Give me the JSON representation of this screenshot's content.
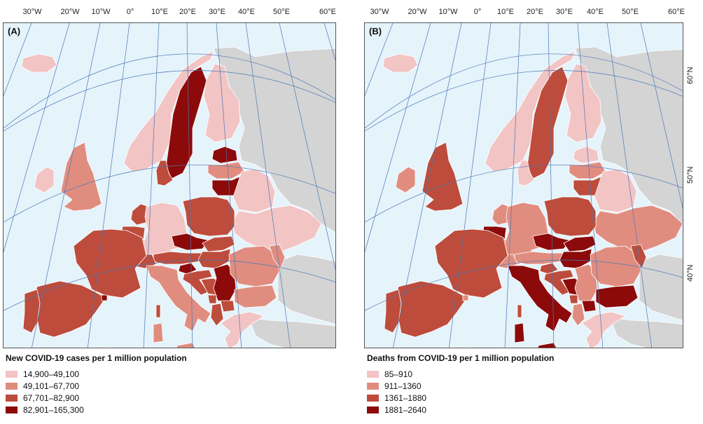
{
  "longitude_labels": [
    "30°W",
    "20°W",
    "10°W",
    "0°",
    "10°E",
    "20°E",
    "30°E",
    "40°E",
    "50°E",
    "60°E"
  ],
  "latitude_labels": [
    "60°N",
    "50°N",
    "40°N"
  ],
  "colors": {
    "sea": "#e5f3fb",
    "non_eu_land": "#d4d4d4",
    "graticule": "#4a78b6",
    "class_1": "#f2c4c4",
    "class_2": "#e08d80",
    "class_3": "#bd4c3c",
    "class_4": "#8c0a0a"
  },
  "panels": [
    {
      "tag": "(A)",
      "legend_title": "New COVID-19 cases per 1 million population",
      "legend": [
        "14,900–49,100",
        "49,101–67,700",
        "67,701–82,900",
        "82,901–165,300"
      ],
      "regions": {
        "iceland": 1,
        "norway": 1,
        "sweden": 4,
        "finland": 1,
        "ireland": 1,
        "uk": 2,
        "denmark": 3,
        "estonia": 4,
        "latvia": 2,
        "lithuania": 4,
        "netherlands": 3,
        "belgium": 3,
        "luxembourg": 3,
        "germany": 1,
        "poland": 3,
        "czechia": 4,
        "slovakia": 3,
        "austria": 3,
        "switzerland": 3,
        "france": 3,
        "portugal": 3,
        "spain": 3,
        "andorra": 4,
        "italy": 2,
        "slovenia": 4,
        "croatia": 3,
        "hungary": 3,
        "romania": 2,
        "bulgaria": 2,
        "serbia": 4,
        "bosnia": 3,
        "montenegro": 3,
        "albania": 3,
        "north_macedonia": 3,
        "greece": 1,
        "belarus": 1,
        "ukraine": 1,
        "moldova": 2,
        "cyprus": 2,
        "malta": 3,
        "sardinia": 2,
        "sicily": 2,
        "corsica": 3
      }
    },
    {
      "tag": "(B)",
      "legend_title": "Deaths from COVID-19 per 1 million population",
      "legend": [
        "85–910",
        "911–1360",
        "1361–1880",
        "1881–2640"
      ],
      "regions": {
        "iceland": 1,
        "norway": 1,
        "sweden": 3,
        "finland": 1,
        "ireland": 2,
        "uk": 3,
        "denmark": 1,
        "estonia": 1,
        "latvia": 2,
        "lithuania": 3,
        "netherlands": 2,
        "belgium": 4,
        "luxembourg": 4,
        "germany": 2,
        "poland": 3,
        "czechia": 4,
        "slovakia": 4,
        "austria": 2,
        "switzerland": 2,
        "france": 3,
        "portugal": 3,
        "spain": 3,
        "andorra": 2,
        "italy": 4,
        "slovenia": 3,
        "croatia": 3,
        "hungary": 4,
        "romania": 2,
        "bulgaria": 4,
        "serbia": 2,
        "bosnia": 4,
        "montenegro": 3,
        "albania": 2,
        "north_macedonia": 4,
        "greece": 1,
        "belarus": 1,
        "ukraine": 2,
        "moldova": 3,
        "cyprus": 1,
        "malta": 2,
        "sardinia": 4,
        "sicily": 4,
        "corsica": 3
      }
    }
  ]
}
